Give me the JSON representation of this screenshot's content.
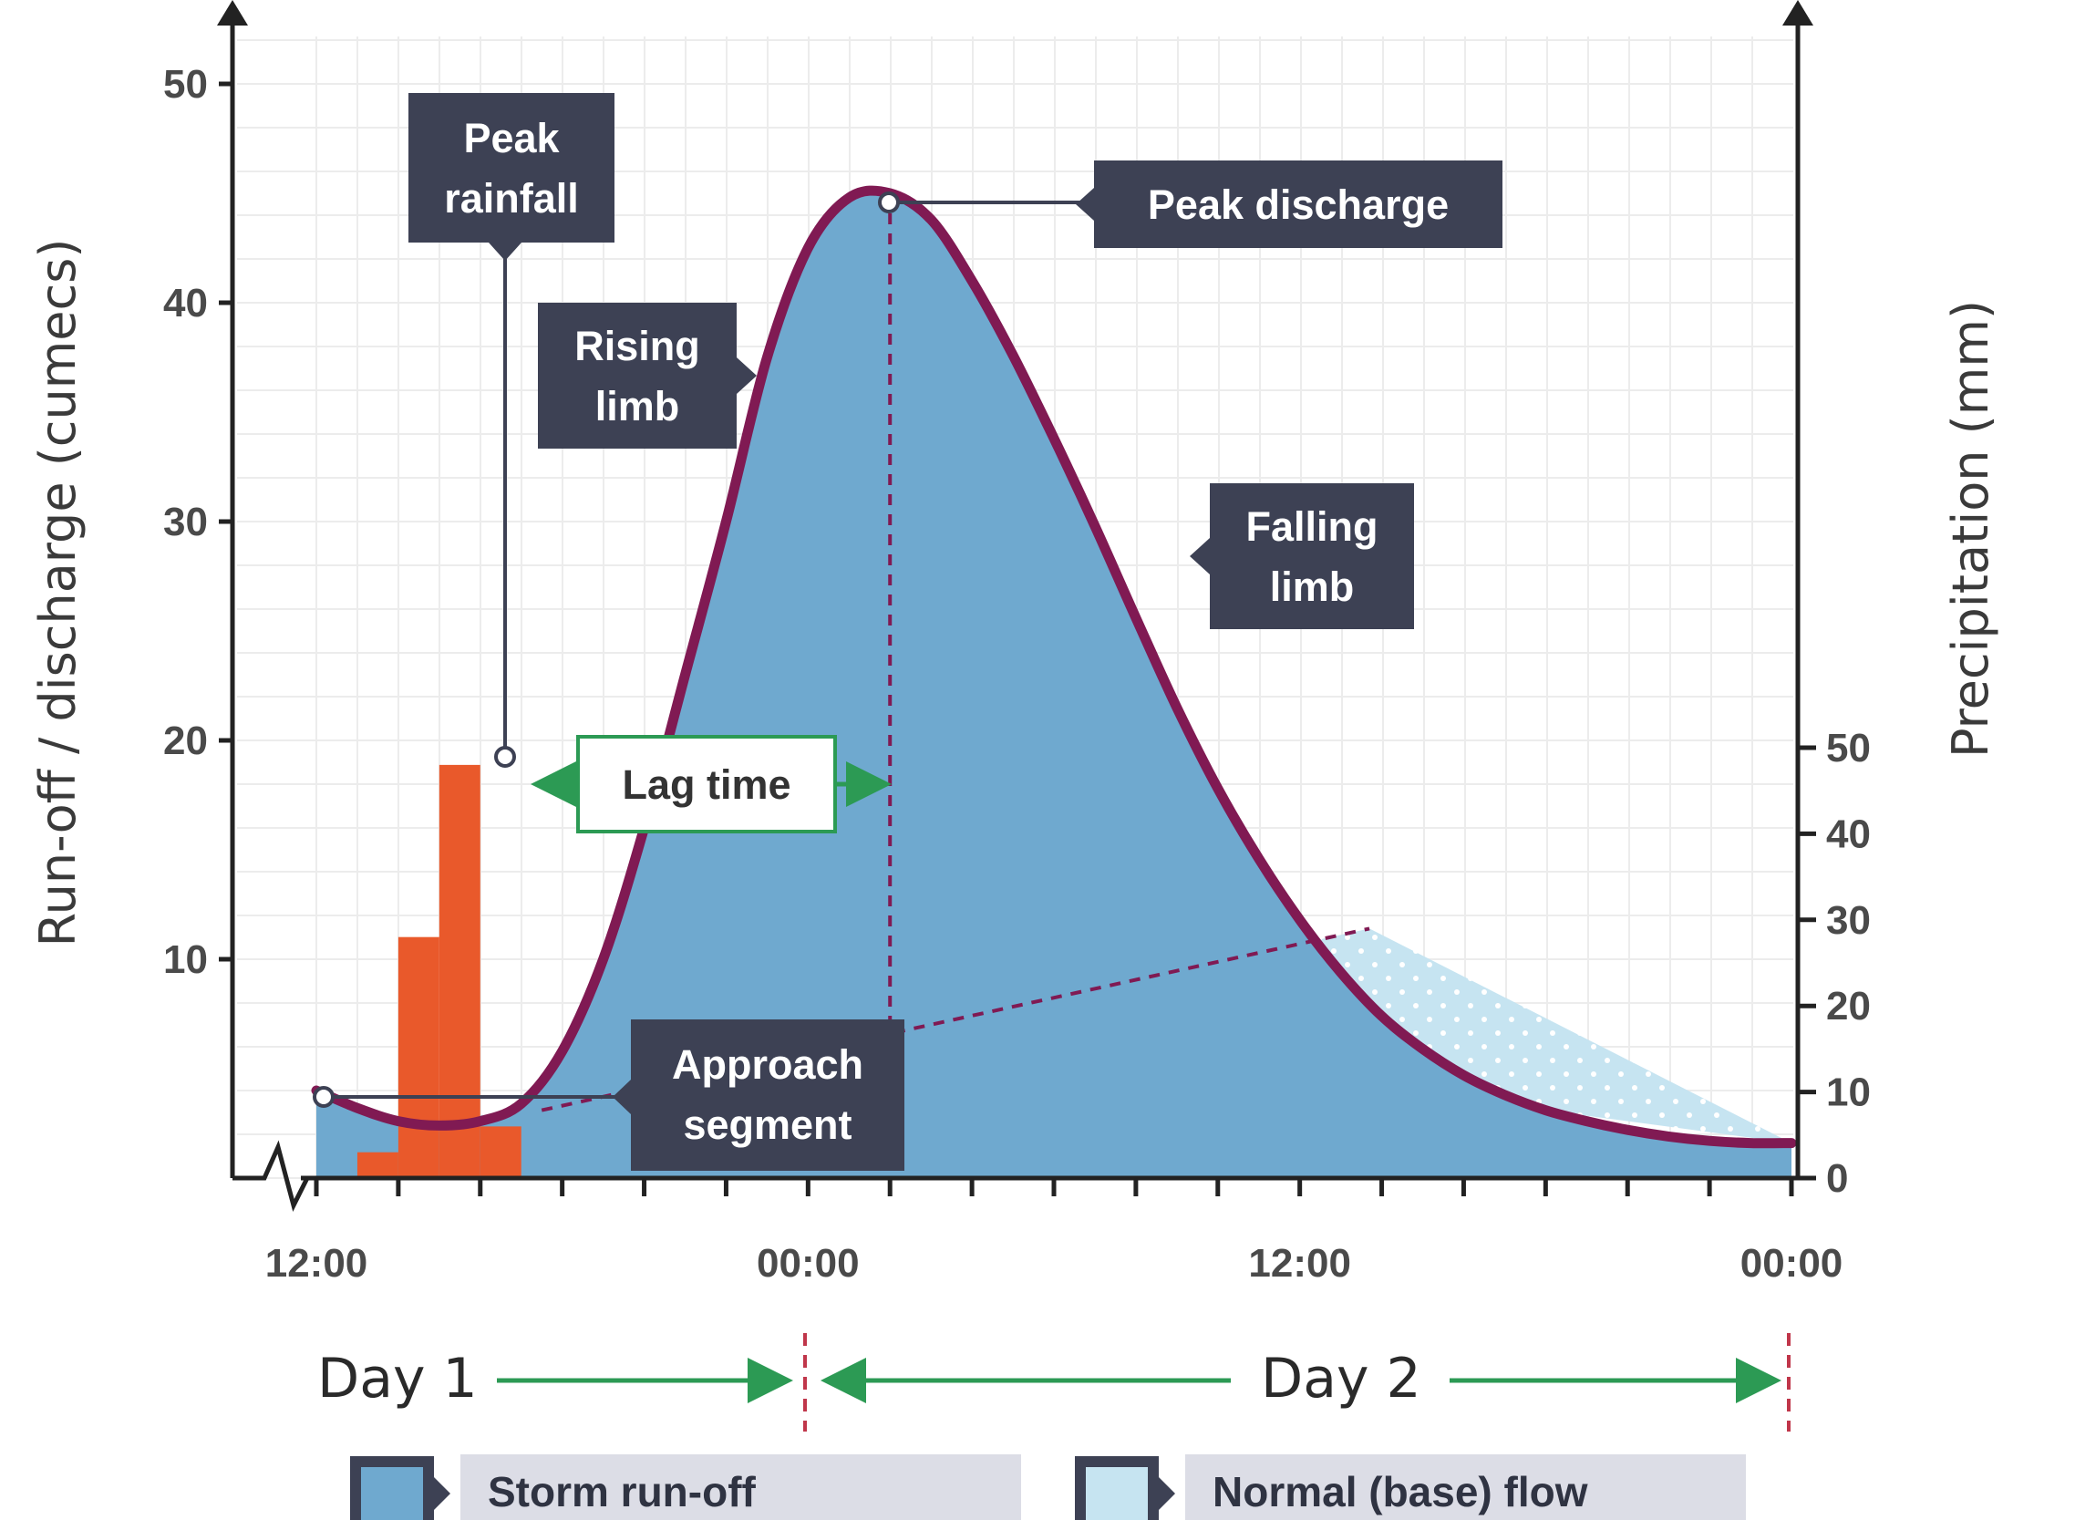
{
  "chart_data": {
    "type": "line",
    "x_ticks": [
      "12:00",
      "00:00",
      "12:00",
      "00:00"
    ],
    "y_left": {
      "label": "Run-off / discharge (cumecs)",
      "ticks": [
        10,
        20,
        30,
        40,
        50
      ],
      "range": [
        0,
        50
      ]
    },
    "y_right": {
      "label": "Precipitation (mm)",
      "ticks": [
        0,
        10,
        20,
        30,
        40,
        50
      ],
      "range": [
        0,
        50
      ]
    },
    "x_hours_range": [
      0,
      36
    ],
    "hydrograph": {
      "x_hours": [
        0,
        1,
        2,
        3,
        4,
        5,
        6,
        7,
        8,
        9,
        10,
        11,
        12,
        13,
        14,
        15,
        16,
        17,
        18,
        19,
        20,
        21,
        22,
        23,
        24,
        25,
        26,
        27,
        28,
        29,
        30,
        31,
        32,
        33,
        34,
        35,
        36
      ],
      "discharge": [
        4.0,
        3.2,
        2.6,
        2.4,
        2.6,
        3.4,
        5.8,
        10.0,
        16.0,
        23.0,
        30.0,
        37.5,
        42.5,
        44.8,
        45.0,
        43.8,
        41.0,
        37.6,
        33.8,
        29.8,
        25.6,
        21.5,
        17.8,
        14.6,
        11.8,
        9.4,
        7.4,
        5.9,
        4.7,
        3.8,
        3.1,
        2.6,
        2.2,
        1.9,
        1.7,
        1.6,
        1.6
      ]
    },
    "baseflow": {
      "x_hours": [
        0,
        5.5,
        14,
        25.7,
        36
      ],
      "discharge": [
        2.3,
        3.1,
        6.6,
        11.4,
        1.6
      ]
    },
    "rainfall": {
      "x_hours": [
        1.5,
        2.5,
        3.5,
        4.5,
        5.5
      ],
      "precipitation_mm": [
        3,
        28,
        48,
        6,
        0
      ]
    },
    "annotations": {
      "peak_rainfall": "Peak rainfall",
      "rising_limb": "Rising limb",
      "peak_discharge": "Peak discharge",
      "falling_limb": "Falling limb",
      "lag_time": "Lag time",
      "approach_segment": "Approach segment"
    },
    "days": [
      "Day 1",
      "Day 2"
    ],
    "legend": [
      "Storm run-off",
      "Normal (base) flow"
    ],
    "colors": {
      "storm": "#6fa9cf",
      "base": "#c6e4f1",
      "curve": "#801a53",
      "rain": "#e9592b",
      "callout": "#3d4154",
      "arrow": "#2c9a54"
    }
  }
}
